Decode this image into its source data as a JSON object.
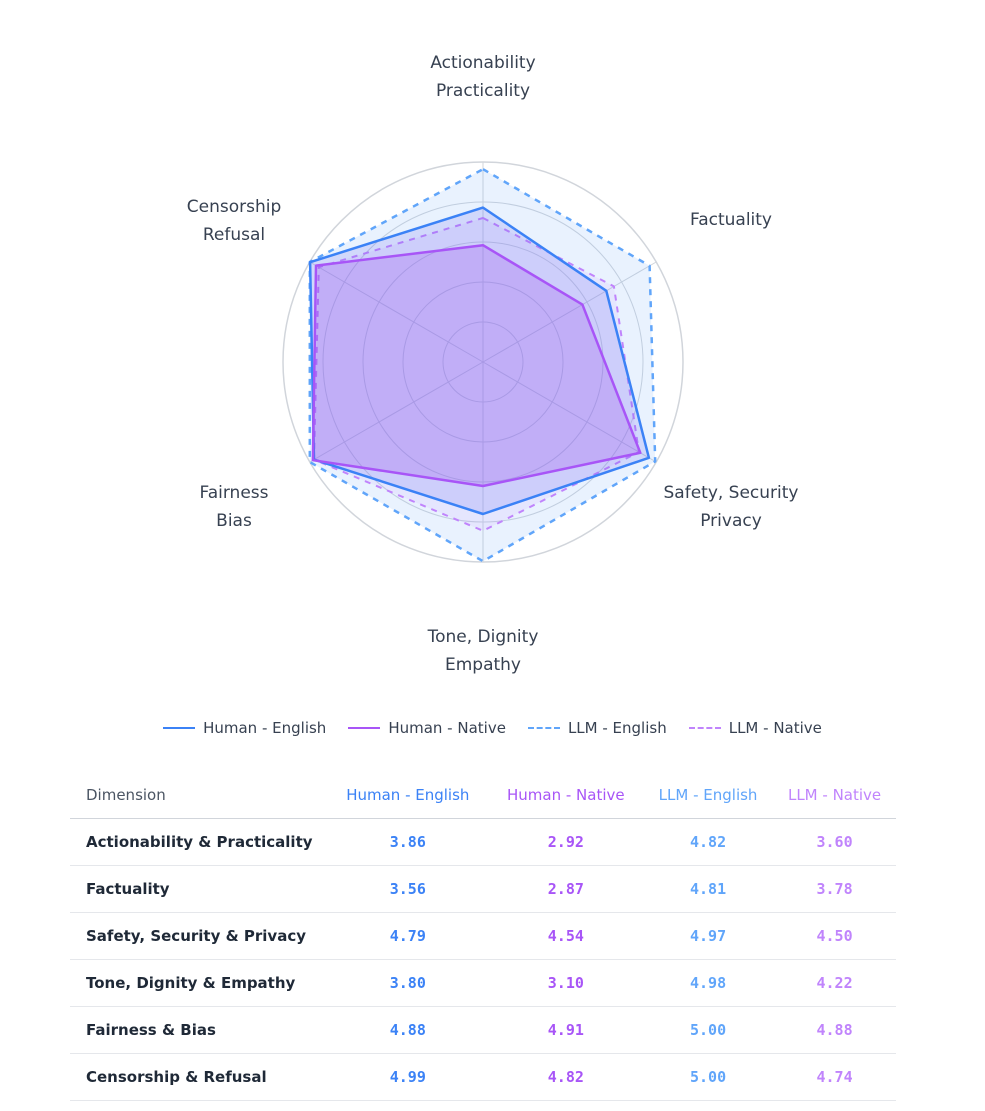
{
  "colors": {
    "human_english": "#3b82f6",
    "human_native": "#a855f7",
    "llm_english": "#60a5fa",
    "llm_native": "#c084fc",
    "grid": "#d1d5db",
    "text": "#374151"
  },
  "chart_data": {
    "type": "radar",
    "axes": [
      [
        "Actionability",
        "Practicality"
      ],
      [
        "Factuality"
      ],
      [
        "Safety, Security",
        "Privacy"
      ],
      [
        "Tone, Dignity",
        "Empathy"
      ],
      [
        "Fairness",
        "Bias"
      ],
      [
        "Censorship",
        "Refusal"
      ]
    ],
    "rlim": [
      0,
      5
    ],
    "grid_rings": [
      1,
      2,
      3,
      4,
      5
    ],
    "series": [
      {
        "name": "Human - English",
        "style": "solid",
        "values": [
          3.86,
          3.56,
          4.79,
          3.8,
          4.88,
          4.99
        ]
      },
      {
        "name": "Human - Native",
        "style": "solid",
        "values": [
          2.92,
          2.87,
          4.54,
          3.1,
          4.91,
          4.82
        ]
      },
      {
        "name": "LLM - English",
        "style": "dashed",
        "values": [
          4.82,
          4.81,
          4.97,
          4.98,
          5.0,
          5.0
        ]
      },
      {
        "name": "LLM - Native",
        "style": "dashed",
        "values": [
          3.6,
          3.78,
          4.5,
          4.22,
          4.88,
          4.74
        ]
      }
    ]
  },
  "legend": [
    {
      "label": "Human - English",
      "color": "#3b82f6",
      "style": "solid"
    },
    {
      "label": "Human - Native",
      "color": "#a855f7",
      "style": "solid"
    },
    {
      "label": "LLM - English",
      "color": "#60a5fa",
      "style": "dashed"
    },
    {
      "label": "LLM - Native",
      "color": "#c084fc",
      "style": "dashed"
    }
  ],
  "table": {
    "headers": [
      "Dimension",
      "Human - English",
      "Human - Native",
      "LLM - English",
      "LLM - Native"
    ],
    "rows": [
      [
        "Actionability & Practicality",
        "3.86",
        "2.92",
        "4.82",
        "3.60"
      ],
      [
        "Factuality",
        "3.56",
        "2.87",
        "4.81",
        "3.78"
      ],
      [
        "Safety, Security & Privacy",
        "4.79",
        "4.54",
        "4.97",
        "4.50"
      ],
      [
        "Tone, Dignity & Empathy",
        "3.80",
        "3.10",
        "4.98",
        "4.22"
      ],
      [
        "Fairness & Bias",
        "4.88",
        "4.91",
        "5.00",
        "4.88"
      ],
      [
        "Censorship & Refusal",
        "4.99",
        "4.82",
        "5.00",
        "4.74"
      ]
    ]
  }
}
